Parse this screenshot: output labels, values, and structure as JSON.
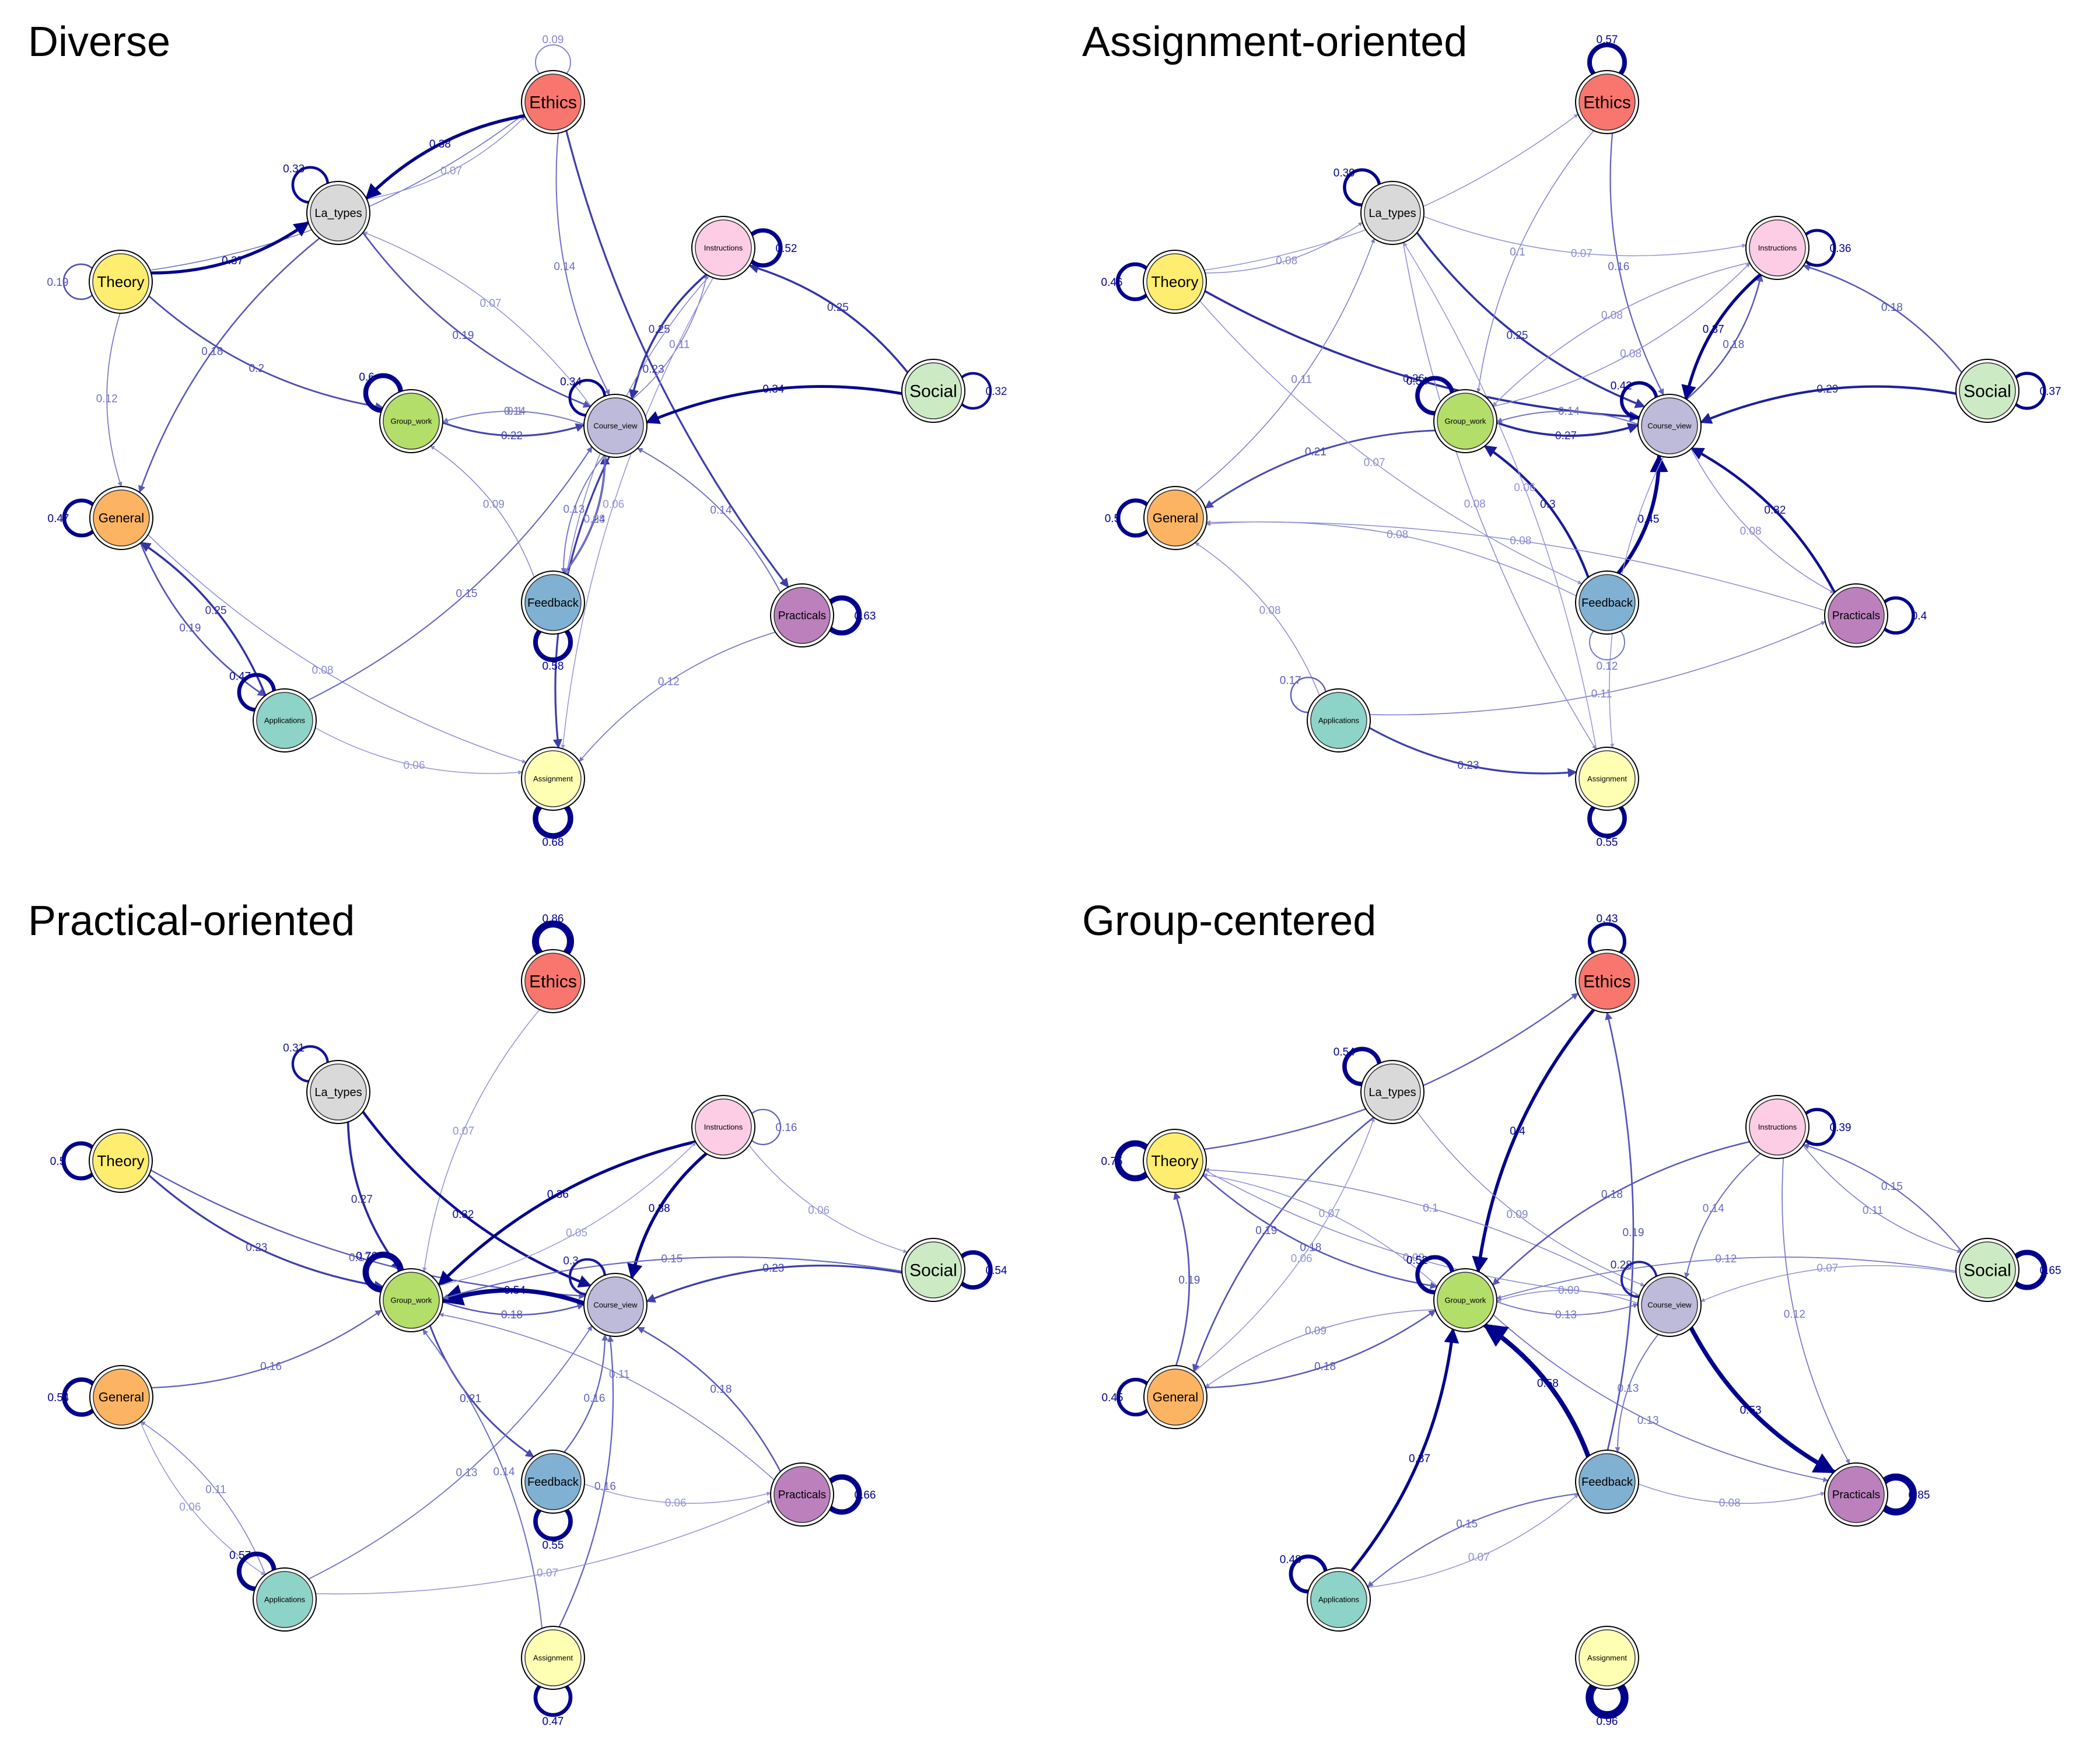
{
  "nodes": [
    {
      "id": "Ethics",
      "label": "Ethics",
      "color": "#f8766d"
    },
    {
      "id": "La_types",
      "label": "La_types",
      "color": "#d9d9d9"
    },
    {
      "id": "Instructions",
      "label": "Instructions",
      "color": "#fccde5"
    },
    {
      "id": "Theory",
      "label": "Theory",
      "color": "#ffed6f"
    },
    {
      "id": "Social",
      "label": "Social",
      "color": "#ccebc5"
    },
    {
      "id": "Group_work",
      "label": "Group_work",
      "color": "#b3de69"
    },
    {
      "id": "Course_view",
      "label": "Course_view",
      "color": "#bebada"
    },
    {
      "id": "General",
      "label": "General",
      "color": "#fdb462"
    },
    {
      "id": "Feedback",
      "label": "Feedback",
      "color": "#80b1d3"
    },
    {
      "id": "Practicals",
      "label": "Practicals",
      "color": "#bc80bd"
    },
    {
      "id": "Applications",
      "label": "Applications",
      "color": "#8dd3c7"
    },
    {
      "id": "Assignment",
      "label": "Assignment",
      "color": "#ffffb3"
    }
  ],
  "panels": [
    {
      "title": "Diverse",
      "self_loops": [
        {
          "node": "Ethics",
          "w": 0.09
        },
        {
          "node": "La_types",
          "w": 0.33
        },
        {
          "node": "Instructions",
          "w": 0.52
        },
        {
          "node": "Theory",
          "w": 0.19
        },
        {
          "node": "Social",
          "w": 0.32
        },
        {
          "node": "Group_work",
          "w": 0.6
        },
        {
          "node": "Course_view",
          "w": 0.34
        },
        {
          "node": "General",
          "w": 0.47
        },
        {
          "node": "Feedback",
          "w": 0.58
        },
        {
          "node": "Practicals",
          "w": 0.63
        },
        {
          "node": "Applications",
          "w": 0.47
        },
        {
          "node": "Assignment",
          "w": 0.68
        }
      ],
      "edges": [
        {
          "from": "Theory",
          "to": "Ethics",
          "w": 0.12
        },
        {
          "from": "La_types",
          "to": "Ethics",
          "w": 0.07
        },
        {
          "from": "Ethics",
          "to": "La_types",
          "w": 0.38
        },
        {
          "from": "Theory",
          "to": "La_types",
          "w": 0.37
        },
        {
          "from": "Ethics",
          "to": "Course_view",
          "w": 0.14
        },
        {
          "from": "Ethics",
          "to": "Practicals",
          "w": 0.23
        },
        {
          "from": "La_types",
          "to": "Course_view",
          "w": 0.19
        },
        {
          "from": "La_types",
          "to": "General",
          "w": 0.18
        },
        {
          "from": "Theory",
          "to": "Group_work",
          "w": 0.2
        },
        {
          "from": "Theory",
          "to": "General",
          "w": 0.12
        },
        {
          "from": "Group_work",
          "to": "Course_view",
          "w": 0.22
        },
        {
          "from": "Course_view",
          "to": "Group_work",
          "w": 0.14
        },
        {
          "from": "Course_view",
          "to": "Instructions",
          "w": 0.11
        },
        {
          "from": "Instructions",
          "to": "Course_view",
          "w": 0.25
        },
        {
          "from": "Social",
          "to": "Instructions",
          "w": 0.25
        },
        {
          "from": "Social",
          "to": "Course_view",
          "w": 0.34
        },
        {
          "from": "Course_view",
          "to": "Feedback",
          "w": 0.13
        },
        {
          "from": "Feedback",
          "to": "Course_view",
          "w": 0.24
        },
        {
          "from": "Course_view",
          "to": "Assignment",
          "w": 0.23
        },
        {
          "from": "Practicals",
          "to": "Course_view",
          "w": 0.14
        },
        {
          "from": "Instructions",
          "to": "Feedback",
          "w": 0.09
        },
        {
          "from": "Instructions",
          "to": "Assignment",
          "w": 0.06
        },
        {
          "from": "General",
          "to": "Applications",
          "w": 0.19
        },
        {
          "from": "Applications",
          "to": "General",
          "w": 0.25
        },
        {
          "from": "General",
          "to": "Assignment",
          "w": 0.08
        },
        {
          "from": "Applications",
          "to": "Course_view",
          "w": 0.15
        },
        {
          "from": "Applications",
          "to": "Assignment",
          "w": 0.06
        },
        {
          "from": "Practicals",
          "to": "Assignment",
          "w": 0.12
        },
        {
          "from": "Feedback",
          "to": "Group_work",
          "w": 0.09
        },
        {
          "from": "Feedback",
          "to": "Course_view",
          "w": 0.08
        },
        {
          "from": "Course_view",
          "to": "La_types",
          "w": 0.07
        },
        {
          "from": "Course_view",
          "to": "Group_work",
          "w": 0.1
        }
      ]
    },
    {
      "title": "Assignment-oriented",
      "self_loops": [
        {
          "node": "Ethics",
          "w": 0.57
        },
        {
          "node": "La_types",
          "w": 0.39
        },
        {
          "node": "Instructions",
          "w": 0.36
        },
        {
          "node": "Theory",
          "w": 0.46
        },
        {
          "node": "Social",
          "w": 0.37
        },
        {
          "node": "Group_work",
          "w": 0.54
        },
        {
          "node": "Course_view",
          "w": 0.42
        },
        {
          "node": "General",
          "w": 0.5
        },
        {
          "node": "Feedback",
          "w": 0.12
        },
        {
          "node": "Practicals",
          "w": 0.4
        },
        {
          "node": "Applications",
          "w": 0.17
        },
        {
          "node": "Assignment",
          "w": 0.55
        }
      ],
      "edges": [
        {
          "from": "Theory",
          "to": "Ethics",
          "w": 0.07
        },
        {
          "from": "Theory",
          "to": "La_types",
          "w": 0.08
        },
        {
          "from": "Ethics",
          "to": "Course_view",
          "w": 0.16
        },
        {
          "from": "La_types",
          "to": "Instructions",
          "w": 0.07
        },
        {
          "from": "La_types",
          "to": "Course_view",
          "w": 0.25
        },
        {
          "from": "Theory",
          "to": "Course_view",
          "w": 0.26
        },
        {
          "from": "Course_view",
          "to": "Instructions",
          "w": 0.18
        },
        {
          "from": "Instructions",
          "to": "Course_view",
          "w": 0.37
        },
        {
          "from": "Social",
          "to": "Instructions",
          "w": 0.18
        },
        {
          "from": "Social",
          "to": "Course_view",
          "w": 0.29
        },
        {
          "from": "Group_work",
          "to": "Course_view",
          "w": 0.27
        },
        {
          "from": "Course_view",
          "to": "Group_work",
          "w": 0.14
        },
        {
          "from": "Group_work",
          "to": "General",
          "w": 0.21
        },
        {
          "from": "General",
          "to": "La_types",
          "w": 0.11
        },
        {
          "from": "Feedback",
          "to": "Group_work",
          "w": 0.3
        },
        {
          "from": "Feedback",
          "to": "Course_view",
          "w": 0.45
        },
        {
          "from": "Practicals",
          "to": "Course_view",
          "w": 0.32
        },
        {
          "from": "Applications",
          "to": "Assignment",
          "w": 0.23
        },
        {
          "from": "Applications",
          "to": "Practicals",
          "w": 0.11
        },
        {
          "from": "Feedback",
          "to": "General",
          "w": 0.08
        },
        {
          "from": "Applications",
          "to": "General",
          "w": 0.08
        },
        {
          "from": "Ethics",
          "to": "Group_work",
          "w": 0.1
        },
        {
          "from": "Instructions",
          "to": "Group_work",
          "w": 0.08
        },
        {
          "from": "Practicals",
          "to": "General",
          "w": 0.08
        },
        {
          "from": "Theory",
          "to": "Feedback",
          "w": 0.07
        },
        {
          "from": "La_types",
          "to": "Assignment",
          "w": 0.08
        },
        {
          "from": "Assignment",
          "to": "La_types",
          "w": 0.06
        },
        {
          "from": "Course_view",
          "to": "Assignment",
          "w": 0.06
        },
        {
          "from": "Group_work",
          "to": "Instructions",
          "w": 0.08
        },
        {
          "from": "Course_view",
          "to": "Practicals",
          "w": 0.08
        }
      ]
    },
    {
      "title": "Practical-oriented",
      "self_loops": [
        {
          "node": "Ethics",
          "w": 0.86
        },
        {
          "node": "La_types",
          "w": 0.31
        },
        {
          "node": "Instructions",
          "w": 0.16
        },
        {
          "node": "Theory",
          "w": 0.5
        },
        {
          "node": "Social",
          "w": 0.54
        },
        {
          "node": "Group_work",
          "w": 0.76
        },
        {
          "node": "Course_view",
          "w": 0.3
        },
        {
          "node": "General",
          "w": 0.54
        },
        {
          "node": "Feedback",
          "w": 0.55
        },
        {
          "node": "Practicals",
          "w": 0.66
        },
        {
          "node": "Applications",
          "w": 0.57
        },
        {
          "node": "Assignment",
          "w": 0.47
        }
      ],
      "edges": [
        {
          "from": "Ethics",
          "to": "Group_work",
          "w": 0.07
        },
        {
          "from": "La_types",
          "to": "Group_work",
          "w": 0.27
        },
        {
          "from": "La_types",
          "to": "Course_view",
          "w": 0.32
        },
        {
          "from": "Theory",
          "to": "Group_work",
          "w": 0.23
        },
        {
          "from": "Theory",
          "to": "Course_view",
          "w": 0.17
        },
        {
          "from": "Instructions",
          "to": "Group_work",
          "w": 0.36
        },
        {
          "from": "Instructions",
          "to": "Course_view",
          "w": 0.38
        },
        {
          "from": "Instructions",
          "to": "Social",
          "w": 0.06
        },
        {
          "from": "Group_work",
          "to": "Course_view",
          "w": 0.18
        },
        {
          "from": "Course_view",
          "to": "Group_work",
          "w": 0.54
        },
        {
          "from": "Social",
          "to": "Course_view",
          "w": 0.23
        },
        {
          "from": "Social",
          "to": "Group_work",
          "w": 0.15
        },
        {
          "from": "General",
          "to": "Group_work",
          "w": 0.16
        },
        {
          "from": "Group_work",
          "to": "Feedback",
          "w": 0.21
        },
        {
          "from": "Feedback",
          "to": "Course_view",
          "w": 0.16
        },
        {
          "from": "Practicals",
          "to": "Course_view",
          "w": 0.18
        },
        {
          "from": "Practicals",
          "to": "Group_work",
          "w": 0.11
        },
        {
          "from": "Applications",
          "to": "Course_view",
          "w": 0.13
        },
        {
          "from": "Assignment",
          "to": "Group_work",
          "w": 0.14
        },
        {
          "from": "Applications",
          "to": "General",
          "w": 0.11
        },
        {
          "from": "General",
          "to": "Applications",
          "w": 0.06
        },
        {
          "from": "Assignment",
          "to": "Course_view",
          "w": 0.16
        },
        {
          "from": "Applications",
          "to": "Practicals",
          "w": 0.07
        },
        {
          "from": "Feedback",
          "to": "Practicals",
          "w": 0.06
        },
        {
          "from": "Group_work",
          "to": "Instructions",
          "w": 0.05
        }
      ]
    },
    {
      "title": "Group-centered",
      "self_loops": [
        {
          "node": "Ethics",
          "w": 0.43
        },
        {
          "node": "La_types",
          "w": 0.54
        },
        {
          "node": "Instructions",
          "w": 0.39
        },
        {
          "node": "Theory",
          "w": 0.75
        },
        {
          "node": "Social",
          "w": 0.65
        },
        {
          "node": "Group_work",
          "w": 0.52
        },
        {
          "node": "Course_view",
          "w": 0.28
        },
        {
          "node": "General",
          "w": 0.45
        },
        {
          "node": "Practicals",
          "w": 0.85
        },
        {
          "node": "Applications",
          "w": 0.48
        },
        {
          "node": "Assignment",
          "w": 0.96
        }
      ],
      "edges": [
        {
          "from": "Theory",
          "to": "Ethics",
          "w": 0.17
        },
        {
          "from": "Ethics",
          "to": "Group_work",
          "w": 0.4
        },
        {
          "from": "Feedback",
          "to": "Ethics",
          "w": 0.19
        },
        {
          "from": "La_types",
          "to": "General",
          "w": 0.19
        },
        {
          "from": "La_types",
          "to": "Course_view",
          "w": 0.09
        },
        {
          "from": "Course_view",
          "to": "Theory",
          "w": 0.1
        },
        {
          "from": "Theory",
          "to": "Course_view",
          "w": 0.09
        },
        {
          "from": "Theory",
          "to": "Group_work",
          "w": 0.18
        },
        {
          "from": "General",
          "to": "Theory",
          "w": 0.19
        },
        {
          "from": "General",
          "to": "Group_work",
          "w": 0.18
        },
        {
          "from": "Group_work",
          "to": "General",
          "w": 0.09
        },
        {
          "from": "Group_work",
          "to": "Course_view",
          "w": 0.13
        },
        {
          "from": "Course_view",
          "to": "Group_work",
          "w": 0.09
        },
        {
          "from": "Instructions",
          "to": "Course_view",
          "w": 0.14
        },
        {
          "from": "Instructions",
          "to": "Group_work",
          "w": 0.18
        },
        {
          "from": "Instructions",
          "to": "Social",
          "w": 0.11
        },
        {
          "from": "Social",
          "to": "Instructions",
          "w": 0.15
        },
        {
          "from": "Social",
          "to": "Group_work",
          "w": 0.12
        },
        {
          "from": "Social",
          "to": "Course_view",
          "w": 0.07
        },
        {
          "from": "Course_view",
          "to": "Practicals",
          "w": 0.53
        },
        {
          "from": "Group_work",
          "to": "Practicals",
          "w": 0.13
        },
        {
          "from": "Course_view",
          "to": "Feedback",
          "w": 0.13
        },
        {
          "from": "Feedback",
          "to": "Group_work",
          "w": 0.58
        },
        {
          "from": "Applications",
          "to": "Group_work",
          "w": 0.37
        },
        {
          "from": "Feedback",
          "to": "Applications",
          "w": 0.15
        },
        {
          "from": "Applications",
          "to": "Feedback",
          "w": 0.07
        },
        {
          "from": "Feedback",
          "to": "Practicals",
          "w": 0.08
        },
        {
          "from": "General",
          "to": "La_types",
          "w": 0.06
        },
        {
          "from": "Instructions",
          "to": "Practicals",
          "w": 0.12
        },
        {
          "from": "Group_work",
          "to": "Theory",
          "w": 0.07
        }
      ]
    }
  ]
}
